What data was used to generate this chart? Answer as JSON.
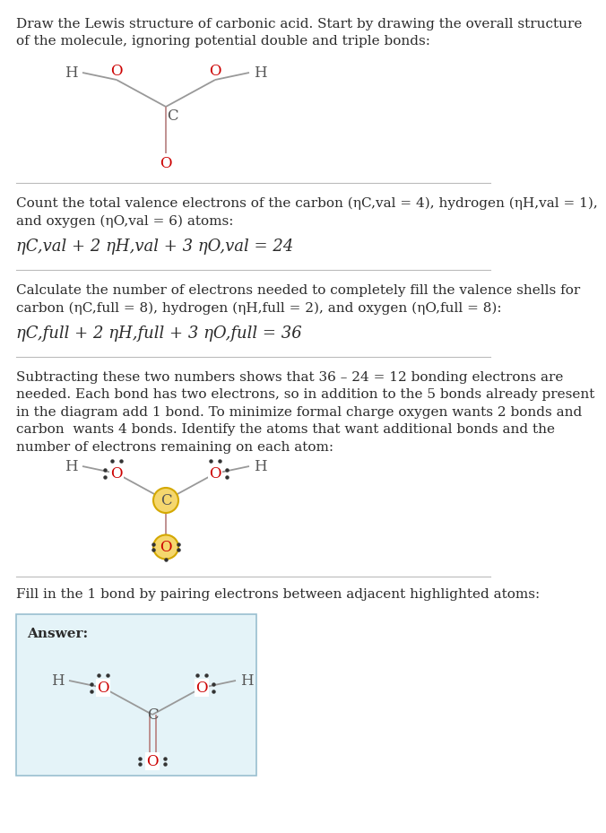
{
  "bg_color": "#ffffff",
  "text_color": "#2b2b2b",
  "atom_O_color": "#cc0000",
  "bond_color_dark": "#888888",
  "bond_color_red": "#cc0000",
  "highlight_yellow": "#f5d76e",
  "highlight_border": "#d4a800",
  "section_line_color": "#bbbbbb",
  "answer_box_color": "#e4f3f8",
  "answer_box_border": "#99bfd0",
  "sec1_text": "Draw the Lewis structure of carbonic acid. Start by drawing the overall structure\nof the molecule, ignoring potential double and triple bonds:",
  "sec2_text_line1": "Count the total valence electrons of the carbon (",
  "sec2_text_line2_italic": "n",
  "sec4_text": "Subtracting these two numbers shows that 36 – 24 = 12 bonding electrons are\nneeded. Each bond has two electrons, so in addition to the 5 bonds already present\nin the diagram add 1 bond. To minimize formal charge oxygen wants 2 bonds and\ncarbon  wants 4 bonds. Identify the atoms that want additional bonds and the\nnumber of electrons remaining on each atom:",
  "sec5_text": "Fill in the 1 bond by pairing electrons between adjacent highlighted atoms:"
}
